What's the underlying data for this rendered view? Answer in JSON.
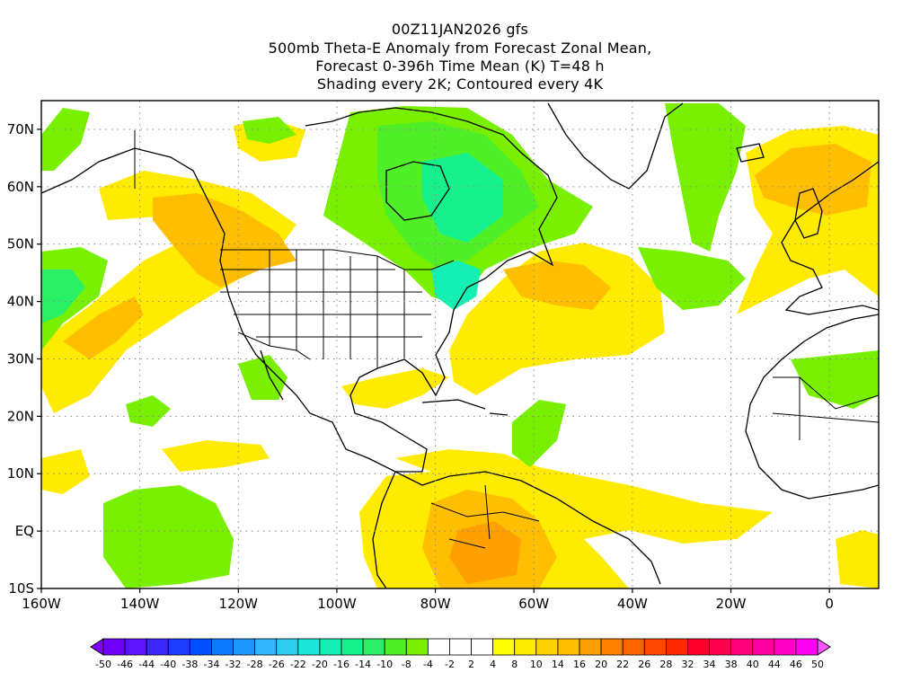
{
  "header": {
    "line1": "00Z11JAN2026 gfs",
    "line2": "500mb Theta-E Anomaly from Forecast Zonal Mean,",
    "line3": "Forecast 0-396h Time Mean (K) T=48 h",
    "line4": "Shading every 2K; Contoured every 4K"
  },
  "map": {
    "lon_range": [
      -160,
      10
    ],
    "lat_range": [
      -10,
      75
    ],
    "grid": "dotted",
    "lat_ticks": [
      "70N",
      "60N",
      "50N",
      "40N",
      "30N",
      "20N",
      "10N",
      "EQ",
      "10S"
    ],
    "lon_ticks": [
      "160W",
      "140W",
      "120W",
      "100W",
      "80W",
      "60W",
      "40W",
      "20W",
      "0"
    ],
    "shading_regions": [
      {
        "name": "north-pacific-warm",
        "level": 6
      },
      {
        "name": "pacific-northwest-warm-core",
        "level": 12
      },
      {
        "name": "western-atlantic-warm",
        "level": 8
      },
      {
        "name": "western-atlantic-warm-core",
        "level": 14
      },
      {
        "name": "northeast-atlantic-warm",
        "level": 8
      },
      {
        "name": "northeast-atlantic-warm-core",
        "level": 14
      },
      {
        "name": "south-america-warm",
        "level": 8
      },
      {
        "name": "south-america-warm-core",
        "level": 14
      },
      {
        "name": "tropical-pacific-warm-band",
        "level": 4
      },
      {
        "name": "hudson-bay-cold",
        "level": -8
      },
      {
        "name": "northeast-us-cold-core",
        "level": -16
      },
      {
        "name": "gulf-of-alaska-cold",
        "level": -10
      },
      {
        "name": "equatorial-pacific-cold",
        "level": -6
      },
      {
        "name": "central-atlantic-cold",
        "level": -6
      },
      {
        "name": "west-africa-cold",
        "level": -6
      },
      {
        "name": "greenland-cold",
        "level": -6
      }
    ]
  },
  "colorbar": {
    "levels": [
      "-50",
      "-46",
      "-44",
      "-40",
      "-38",
      "-34",
      "-32",
      "-28",
      "-26",
      "-22",
      "-20",
      "-16",
      "-14",
      "-10",
      "-8",
      "-4",
      "-2",
      "2",
      "4",
      "8",
      "10",
      "14",
      "16",
      "20",
      "22",
      "26",
      "28",
      "32",
      "34",
      "38",
      "40",
      "44",
      "46",
      "50"
    ],
    "colors": [
      "#8000ff",
      "#7000ff",
      "#5a14ff",
      "#3c28ff",
      "#1e3cff",
      "#0050ff",
      "#0a78ff",
      "#1e96ff",
      "#32b4ff",
      "#2dcdf0",
      "#1ee6dc",
      "#14f0b4",
      "#14f08c",
      "#28f064",
      "#50f028",
      "#78f000",
      "#ffffff",
      "#ffffff",
      "#ffffff",
      "#ffff00",
      "#ffeb00",
      "#ffd200",
      "#ffbe00",
      "#ffa000",
      "#ff8200",
      "#ff6400",
      "#ff4600",
      "#ff2800",
      "#ff0028",
      "#ff0050",
      "#ff0078",
      "#ff00a0",
      "#ff00c8",
      "#ff00f0",
      "#ff50ff"
    ]
  }
}
